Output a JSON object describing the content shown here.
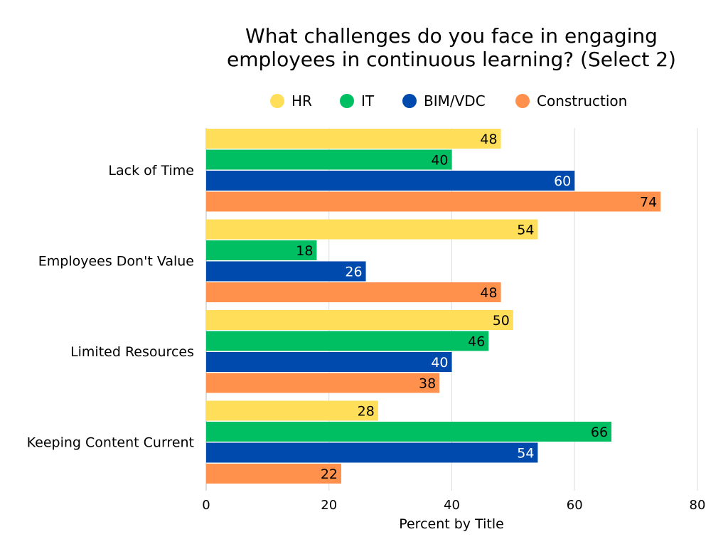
{
  "chart_data": {
    "type": "bar",
    "orientation": "horizontal",
    "title": [
      "What challenges do you face in engaging",
      "employees in continuous learning? (Select 2)"
    ],
    "xlabel": "Percent by Title",
    "ylabel": "",
    "xlim": [
      0,
      80
    ],
    "xticks": [
      0,
      20,
      40,
      60,
      80
    ],
    "grid": true,
    "legend_position": "top",
    "categories": [
      "Lack of Time",
      "Employees Don't Value",
      "Limited Resources",
      "Keeping Content Current"
    ],
    "series": [
      {
        "name": "HR",
        "color": "#FFDE59",
        "label_color": "#000000",
        "values": [
          48,
          54,
          50,
          28
        ]
      },
      {
        "name": "IT",
        "color": "#00BF63",
        "label_color": "#000000",
        "values": [
          40,
          18,
          46,
          66
        ]
      },
      {
        "name": "BIM/VDC",
        "color": "#004AAD",
        "label_color": "#FFFFFF",
        "values": [
          60,
          26,
          40,
          54
        ]
      },
      {
        "name": "Construction",
        "color": "#FF914D",
        "label_color": "#000000",
        "values": [
          74,
          48,
          38,
          22
        ]
      }
    ]
  }
}
